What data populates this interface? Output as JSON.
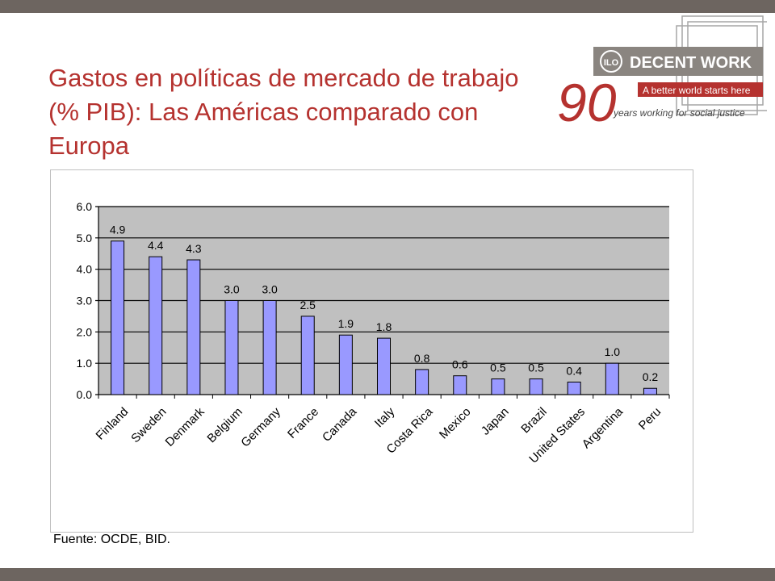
{
  "slide": {
    "title": "Gastos en políticas de mercado de trabajo (% PIB): Las Américas comparado con Europa",
    "source": "Fuente: OCDE, BID."
  },
  "logo": {
    "brand": "DECENT WORK",
    "tagline": "A better world starts here",
    "anniversary": "90",
    "motto": "years working for social justice"
  },
  "colors": {
    "accent": "#b5322f",
    "bar_fill": "#9999ff",
    "plot_bg": "#c0c0c0",
    "frame_bar": "#6d6560"
  },
  "chart_data": {
    "type": "bar",
    "title": "",
    "xlabel": "",
    "ylabel": "",
    "categories": [
      "Finland",
      "Sweden",
      "Denmark",
      "Belgium",
      "Germany",
      "France",
      "Canada",
      "Italy",
      "Costa Rica",
      "Mexico",
      "Japan",
      "Brazil",
      "United States",
      "Argentina",
      "Peru"
    ],
    "values": [
      4.9,
      4.4,
      4.3,
      3.0,
      3.0,
      2.5,
      1.9,
      1.8,
      0.8,
      0.6,
      0.5,
      0.5,
      0.4,
      1.0,
      0.2
    ],
    "data_labels": [
      "4.9",
      "4.4",
      "4.3",
      "3.0",
      "3.0",
      "2.5",
      "1.9",
      "1.8",
      "0.8",
      "0.6",
      "0.5",
      "0.5",
      "0.4",
      "1.0",
      "0.2"
    ],
    "yticks": [
      "0.0",
      "1.0",
      "2.0",
      "3.0",
      "4.0",
      "5.0",
      "6.0"
    ],
    "ylim": [
      0,
      6
    ],
    "grid": true,
    "legend": "none"
  }
}
